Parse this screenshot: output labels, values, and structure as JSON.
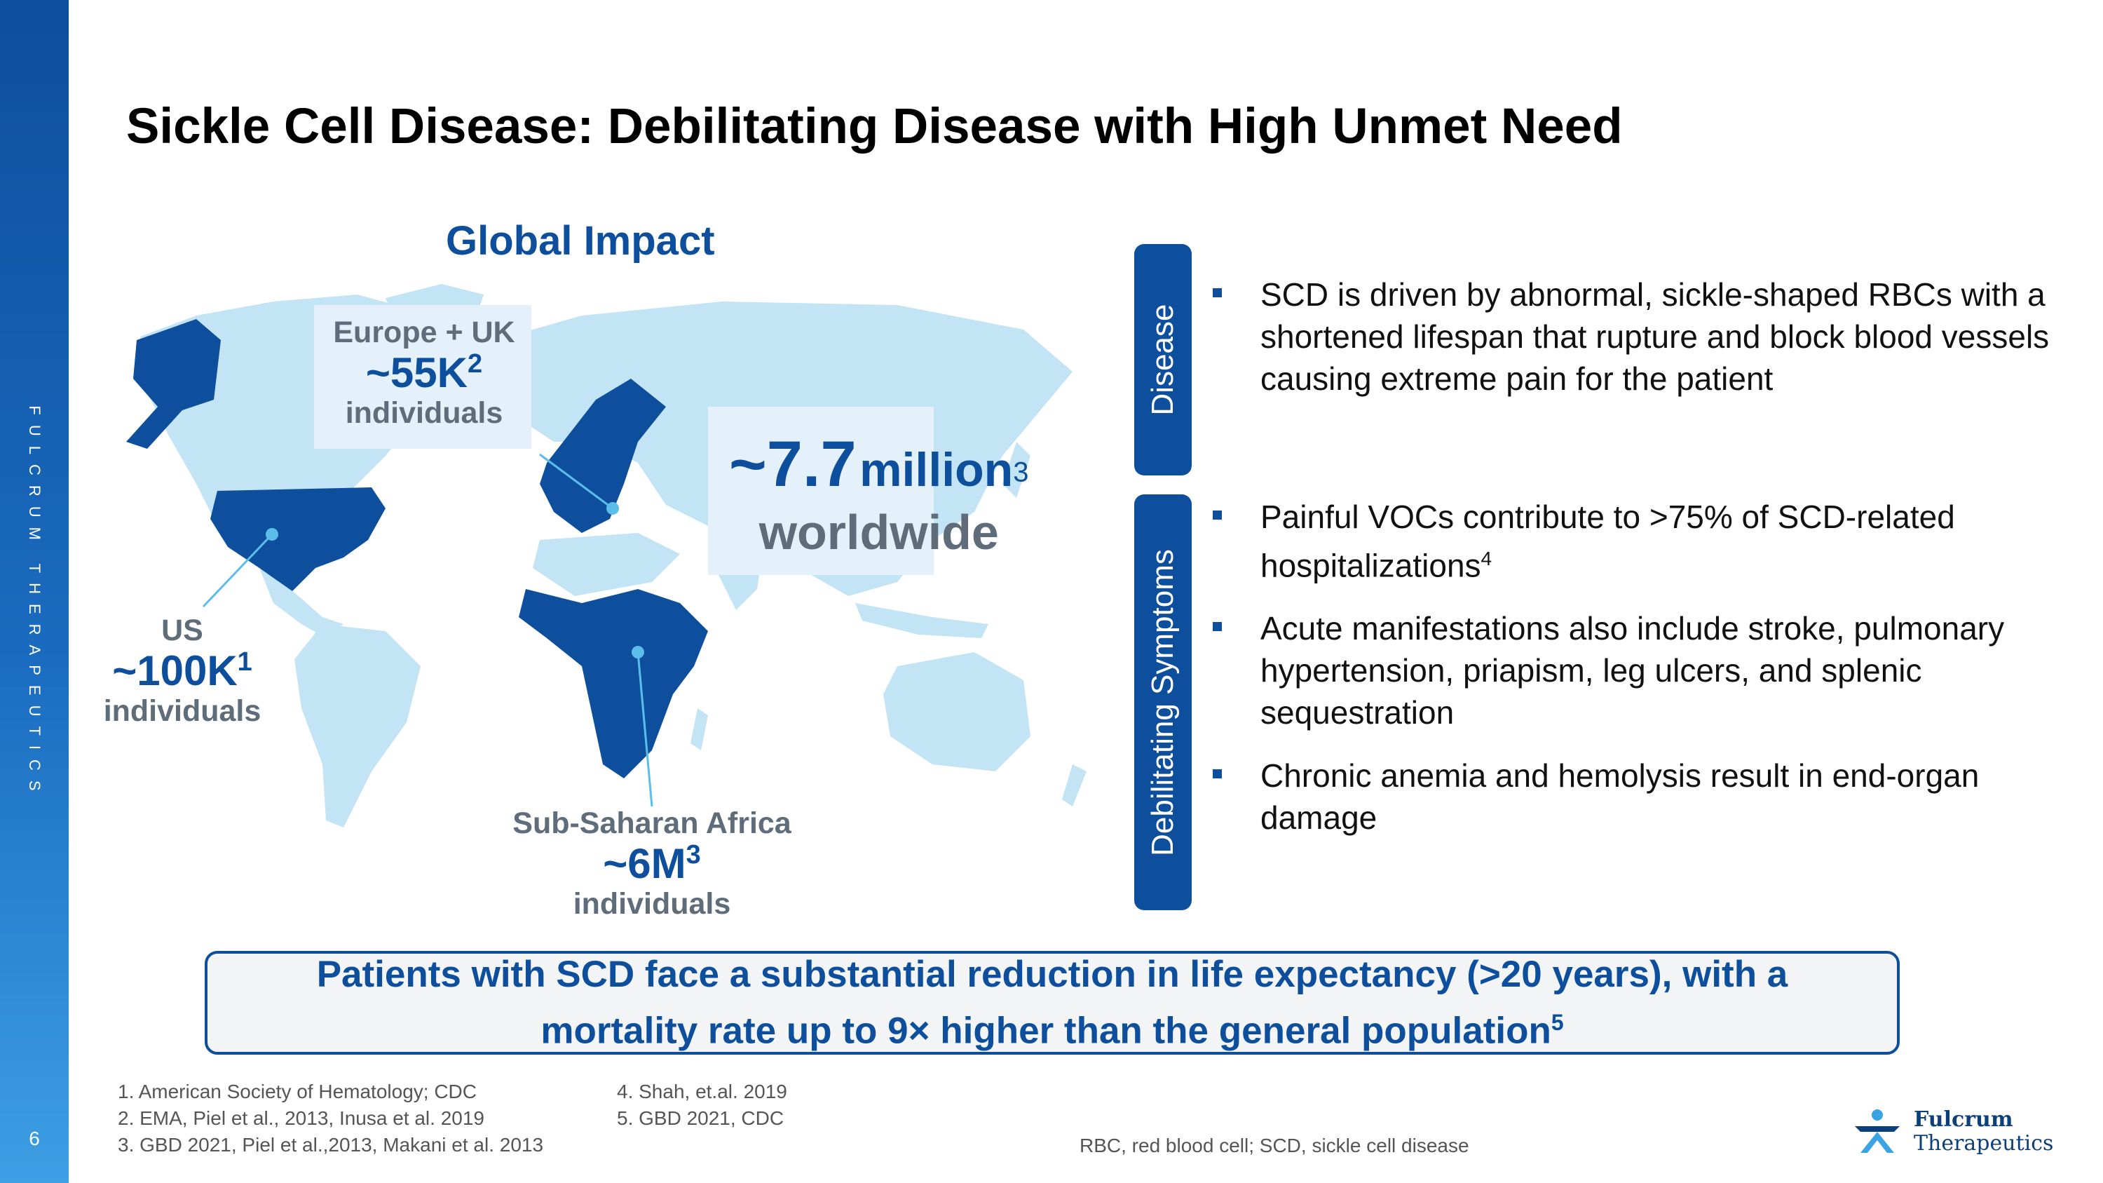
{
  "sidebar": {
    "brand": "FULCRUM THERAPEUTICS",
    "page_number": "6"
  },
  "title": "Sickle Cell Disease: Debilitating Disease with High Unmet Need",
  "global_impact": {
    "heading": "Global Impact",
    "europe": {
      "label": "Europe + UK",
      "value": "~55K",
      "ref": "2",
      "unit": "individuals"
    },
    "us": {
      "label": "US",
      "value": "~100K",
      "ref": "1",
      "unit": "individuals"
    },
    "africa": {
      "label": "Sub-Saharan Africa",
      "value": "~6M",
      "ref": "3",
      "unit": "individuals"
    },
    "worldwide": {
      "value": "~7.7",
      "unit": "million",
      "ref": "3",
      "label": "worldwide"
    }
  },
  "disease": {
    "tab": "Disease",
    "bullets": [
      {
        "text": "SCD is driven by abnormal, sickle-shaped RBCs with a shortened lifespan that rupture and block blood vessels causing extreme pain for the patient"
      }
    ]
  },
  "symptoms": {
    "tab": "Debilitating Symptoms",
    "bullets": [
      {
        "text": "Painful VOCs contribute to >75% of SCD-related hospitalizations",
        "ref": "4"
      },
      {
        "text": "Acute manifestations also include stroke, pulmonary hypertension, priapism, leg ulcers, and splenic sequestration"
      },
      {
        "text": "Chronic anemia and hemolysis result in end-organ damage"
      }
    ]
  },
  "callout": {
    "line1": "Patients with SCD face a substantial reduction in life expectancy (>20 years), with a",
    "line2": "mortality rate up to 9× higher than the general population",
    "ref": "5"
  },
  "footnotes": {
    "left": [
      "1. American Society of Hematology; CDC",
      "2. EMA, Piel et al., 2013,  Inusa et al. 2019",
      "3. GBD 2021, Piel et al.,2013, Makani et al. 2013"
    ],
    "right": [
      "4. Shah, et.al. 2019",
      "5. GBD 2021, CDC"
    ]
  },
  "abbreviations": "RBC, red blood cell; SCD, sickle cell disease",
  "logo": {
    "line1": "Fulcrum",
    "line2": "Therapeutics"
  },
  "colors": {
    "brand_blue": "#0d4f9c",
    "light_blue": "#c2e4f5",
    "grey_text": "#5f6d7a"
  }
}
